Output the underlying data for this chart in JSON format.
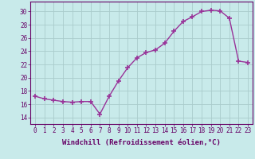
{
  "x": [
    0,
    1,
    2,
    3,
    4,
    5,
    6,
    7,
    8,
    9,
    10,
    11,
    12,
    13,
    14,
    15,
    16,
    17,
    18,
    19,
    20,
    21,
    22,
    23
  ],
  "y": [
    17.2,
    16.8,
    16.6,
    16.4,
    16.3,
    16.4,
    16.4,
    14.5,
    17.2,
    19.5,
    21.5,
    23.0,
    23.8,
    24.2,
    25.2,
    27.0,
    28.5,
    29.2,
    30.0,
    30.2,
    30.1,
    29.0,
    22.5,
    22.3
  ],
  "line_color": "#993399",
  "marker": "+",
  "marker_size": 4,
  "marker_lw": 1.2,
  "bg_color": "#c8eaea",
  "grid_color": "#aacccc",
  "xlabel": "Windchill (Refroidissement éolien,°C)",
  "xlabel_fontsize": 6.5,
  "ylabel_ticks": [
    14,
    16,
    18,
    20,
    22,
    24,
    26,
    28,
    30
  ],
  "ylim": [
    13.0,
    31.5
  ],
  "xlim": [
    -0.5,
    23.5
  ],
  "xtick_labels": [
    "0",
    "1",
    "2",
    "3",
    "4",
    "5",
    "6",
    "7",
    "8",
    "9",
    "10",
    "11",
    "12",
    "13",
    "14",
    "15",
    "16",
    "17",
    "18",
    "19",
    "20",
    "21",
    "22",
    "23"
  ],
  "tick_fontsize": 5.5,
  "tick_color": "#660066",
  "axis_color": "#660066",
  "line_width": 1.0
}
